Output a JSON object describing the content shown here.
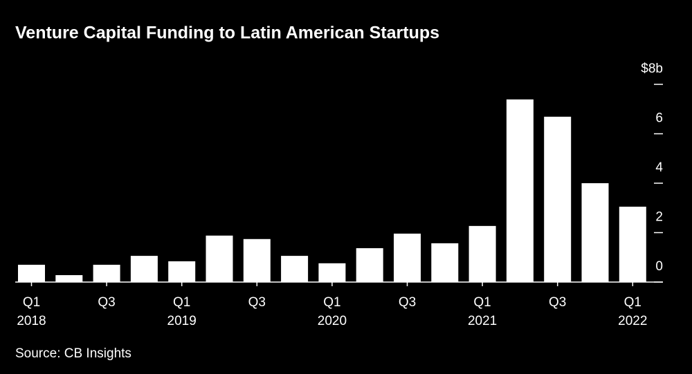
{
  "chart_data": {
    "type": "bar",
    "title": "Venture Capital Funding to Latin American Startups",
    "source": "Source: CB Insights",
    "categories": [
      "Q1",
      null,
      "Q3",
      null,
      "Q1",
      null,
      "Q3",
      null,
      "Q1",
      null,
      "Q3",
      null,
      "Q1",
      null,
      "Q3",
      null,
      "Q1"
    ],
    "category_years": [
      "2018",
      null,
      null,
      null,
      "2019",
      null,
      null,
      null,
      "2020",
      null,
      null,
      null,
      "2021",
      null,
      null,
      null,
      "2022"
    ],
    "values": [
      0.7,
      0.28,
      0.7,
      1.06,
      0.84,
      1.88,
      1.74,
      1.06,
      0.76,
      1.37,
      1.96,
      1.57,
      2.27,
      7.39,
      6.69,
      4.0,
      3.05
    ],
    "color": "#ffffff",
    "ylim": [
      0,
      8
    ],
    "yticks": [
      0,
      2,
      4,
      6,
      {
        "value": 8,
        "label": "$8b"
      }
    ]
  }
}
